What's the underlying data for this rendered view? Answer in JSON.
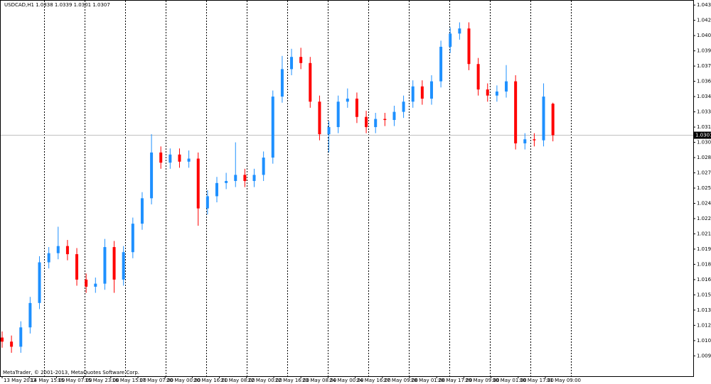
{
  "chart_data": {
    "type": "candlestick",
    "title": "USDCAD,H1  1.0338 1.0339 1.0301 1.0307",
    "footer": "MetaTrader, © 2001-2013, MetaQuotes Software Corp.",
    "up_color": "#1e90ff",
    "down_color": "#ff0000",
    "last_price": 1.0307,
    "ylim": [
      1.007,
      1.044
    ],
    "yticks": [
      1.0435,
      {
        "value": 1.042,
        "label": "1.0420"
      },
      1.0405,
      {
        "value": 1.039,
        "label": "1.0390"
      },
      1.0375,
      {
        "value": 1.036,
        "label": "1.0360"
      },
      1.0345,
      {
        "value": 1.033,
        "label": "1.0330"
      },
      1.0315,
      {
        "value": 1.03,
        "label": "1.0300"
      },
      1.0285,
      {
        "value": 1.027,
        "label": "1.0270"
      },
      1.0255,
      {
        "value": 1.024,
        "label": "1.0240"
      },
      1.0225,
      {
        "value": 1.021,
        "label": "1.0210"
      },
      1.0195,
      {
        "value": 1.018,
        "label": "1.0180"
      },
      1.0165,
      {
        "value": 1.015,
        "label": "1.0150"
      },
      1.0135,
      {
        "value": 1.012,
        "label": "1.0120"
      },
      1.0105,
      {
        "value": 1.009,
        "label": "1.0090"
      }
    ],
    "x_labels": [
      "13 May 2013",
      "14 May 15:00",
      "15 May 07:00",
      "15 May 23:00",
      "16 May 15:00",
      "17 May 07:00",
      "20 May 00:00",
      "20 May 16:00",
      "21 May 08:00",
      "22 May 00:00",
      "22 May 16:00",
      "23 May 08:00",
      "24 May 00:00",
      "24 May 16:00",
      "27 May 09:00",
      "28 May 01:00",
      "28 May 17:00",
      "29 May 09:00",
      "30 May 01:00",
      "30 May 17:00",
      "31 May 09:00"
    ],
    "open": [
      1.0108,
      1.0104,
      1.0099,
      1.0118,
      1.0142,
      1.0182,
      1.0191,
      1.0198,
      1.019,
      1.0165,
      1.0158,
      1.0161,
      1.0197,
      1.0165,
      1.0192,
      1.022,
      1.0245,
      1.029,
      1.028,
      1.0288,
      1.0281,
      1.0284,
      1.0235,
      1.0247,
      1.026,
      1.0262,
      1.0268,
      1.0262,
      1.0268,
      1.0285,
      1.0345,
      1.0372,
      1.0384,
      1.0378,
      1.034,
      1.0308,
      1.0315,
      1.034,
      1.0343,
      1.0325,
      1.0315,
      1.0323,
      1.0322,
      1.033,
      1.034,
      1.0355,
      1.0343,
      1.036,
      1.0394,
      1.0407,
      1.0412,
      1.0377,
      1.0352,
      1.0346,
      1.035,
      1.036,
      1.0299,
      1.0303,
      1.0302,
      1.0338
    ],
    "high": [
      1.0114,
      1.011,
      1.0124,
      1.0148,
      1.0188,
      1.0197,
      1.0217,
      1.0204,
      1.0196,
      1.0171,
      1.0167,
      1.0205,
      1.0203,
      1.0198,
      1.0226,
      1.0251,
      1.0308,
      1.0296,
      1.0294,
      1.0294,
      1.0292,
      1.029,
      1.0253,
      1.0266,
      1.027,
      1.03,
      1.0274,
      1.0274,
      1.0291,
      1.0351,
      1.0385,
      1.0392,
      1.0393,
      1.0384,
      1.0346,
      1.0321,
      1.0346,
      1.0353,
      1.0349,
      1.0331,
      1.0329,
      1.0329,
      1.0336,
      1.0346,
      1.0361,
      1.0361,
      1.0366,
      1.04,
      1.0413,
      1.0418,
      1.0418,
      1.0383,
      1.0358,
      1.0356,
      1.0376,
      1.0366,
      1.0309,
      1.0309,
      1.0358,
      1.0339
    ],
    "low": [
      1.0098,
      1.0093,
      1.0093,
      1.0112,
      1.0136,
      1.0176,
      1.0185,
      1.0184,
      1.0159,
      1.0152,
      1.0152,
      1.0155,
      1.0152,
      1.0159,
      1.0186,
      1.0214,
      1.0239,
      1.0274,
      1.0274,
      1.0275,
      1.0275,
      1.0218,
      1.0229,
      1.0241,
      1.0254,
      1.0256,
      1.0256,
      1.0256,
      1.0262,
      1.0279,
      1.0339,
      1.0366,
      1.0372,
      1.0334,
      1.0302,
      1.029,
      1.0309,
      1.0334,
      1.0319,
      1.0309,
      1.0309,
      1.0316,
      1.0316,
      1.0324,
      1.0334,
      1.0337,
      1.0337,
      1.0354,
      1.0388,
      1.0401,
      1.0371,
      1.0346,
      1.034,
      1.034,
      1.0344,
      1.0293,
      1.0293,
      1.0296,
      1.0296,
      1.0301
    ],
    "close": [
      1.0104,
      1.0099,
      1.0118,
      1.0142,
      1.0182,
      1.0191,
      1.0198,
      1.019,
      1.0165,
      1.0158,
      1.0161,
      1.0197,
      1.0165,
      1.0192,
      1.022,
      1.0245,
      1.029,
      1.028,
      1.0288,
      1.0281,
      1.0284,
      1.0235,
      1.0247,
      1.026,
      1.0262,
      1.0268,
      1.0262,
      1.0268,
      1.0285,
      1.0345,
      1.0372,
      1.0384,
      1.0378,
      1.034,
      1.0308,
      1.0315,
      1.034,
      1.0343,
      1.0325,
      1.0315,
      1.0323,
      1.0322,
      1.033,
      1.034,
      1.0355,
      1.0343,
      1.036,
      1.0394,
      1.0407,
      1.0412,
      1.0377,
      1.0352,
      1.0346,
      1.035,
      1.036,
      1.0299,
      1.0303,
      1.0302,
      1.0345,
      1.0307
    ]
  }
}
